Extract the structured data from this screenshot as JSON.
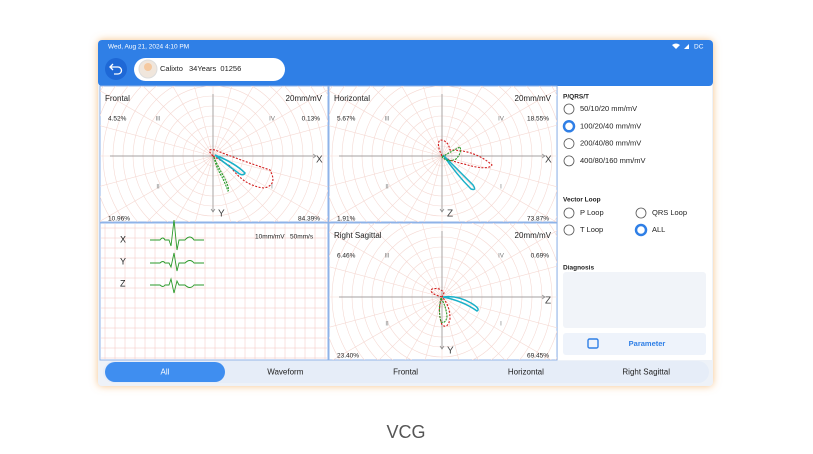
{
  "status_bar": {
    "datetime": "Wed, Aug 21, 2024 4:10 PM",
    "power": "DC"
  },
  "patient": {
    "name": "Calixto",
    "info": "34Years  01256"
  },
  "panels": [
    {
      "title": "Frontal",
      "scale": "20mm/mV",
      "corners": [
        "4.52%",
        "0.13%",
        "10.96%",
        "84.39%"
      ],
      "quadrants": [
        "III",
        "IV",
        "II",
        "I"
      ],
      "axes": [
        "X",
        "Y"
      ]
    },
    {
      "title": "Horizontal",
      "scale": "20mm/mV",
      "corners": [
        "5.67%",
        "18.55%",
        "1.91%",
        "73.87%"
      ],
      "quadrants": [
        "III",
        "IV",
        "II",
        "I"
      ],
      "axes": [
        "X",
        "Z"
      ]
    },
    {
      "title": "Right Sagittal",
      "scale": "20mm/mV",
      "corners": [
        "6.46%",
        "0.69%",
        "23.40%",
        "69.45%"
      ],
      "quadrants": [
        "III",
        "IV",
        "II",
        "I"
      ],
      "axes": [
        "Z",
        "Y"
      ]
    }
  ],
  "waveform": {
    "gain": "10mm/mV",
    "speed": "50mm/s",
    "leads": [
      "X",
      "Y",
      "Z"
    ]
  },
  "settings": {
    "title": "P/QRS/T",
    "options": [
      "50/10/20 mm/mV",
      "100/20/40 mm/mV",
      "200/40/80 mm/mV",
      "400/80/160 mm/mV"
    ],
    "selected": 1
  },
  "vector_loop": {
    "title": "Vector Loop",
    "options": [
      "P Loop",
      "QRS Loop",
      "T Loop",
      "ALL"
    ],
    "selected": 3
  },
  "diagnosis": {
    "title": "Diagnosis"
  },
  "parameter_button": "Parameter",
  "tabs": {
    "items": [
      "All",
      "Waveform",
      "Frontal",
      "Horizontal",
      "Right Sagittal"
    ],
    "selected": 0
  },
  "caption": "VCG"
}
